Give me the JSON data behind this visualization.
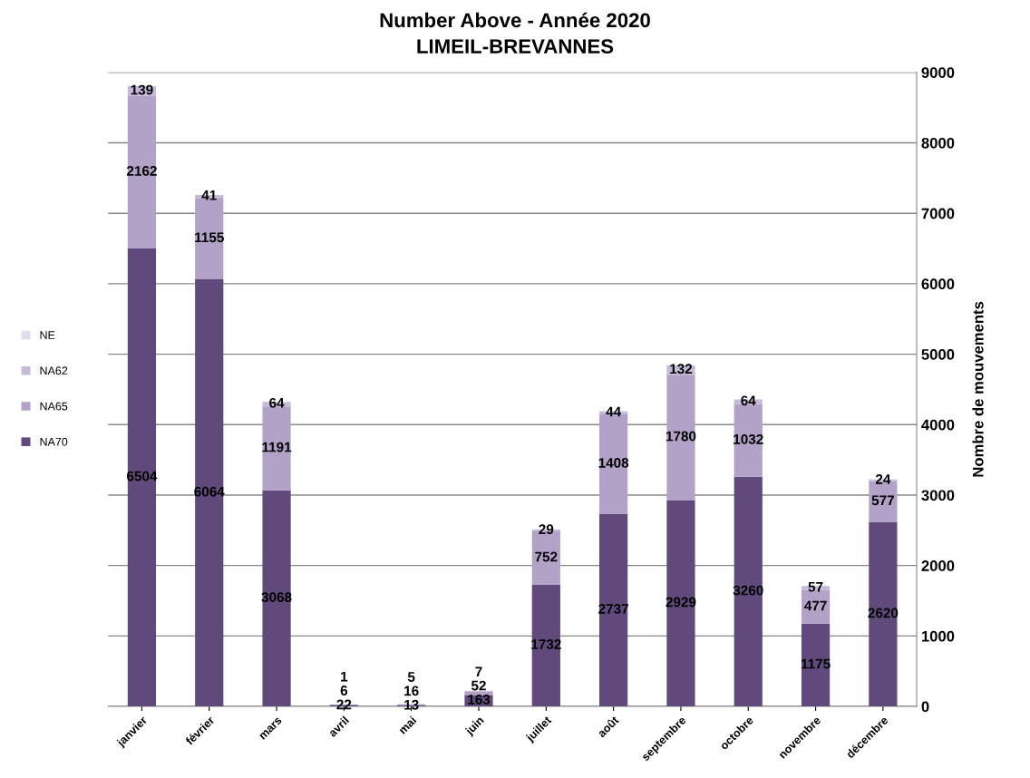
{
  "chart_data": {
    "type": "bar",
    "stacked": true,
    "title": "Number Above - Année 2020\nLIMEIL-BREVANNES",
    "ylabel": "Nombre de mouvements",
    "categories": [
      "janvier",
      "février",
      "mars",
      "avril",
      "mai",
      "juin",
      "juillet",
      "août",
      "septembre",
      "octobre",
      "novembre",
      "décembre"
    ],
    "series": [
      {
        "name": "NA70",
        "color": "#5f4a7b",
        "values": [
          6504,
          6064,
          3068,
          22,
          13,
          163,
          1732,
          2737,
          2929,
          3260,
          1175,
          2620
        ]
      },
      {
        "name": "NA65",
        "color": "#b3a2c7",
        "values": [
          2162,
          1155,
          1191,
          6,
          16,
          52,
          752,
          1408,
          1780,
          1032,
          477,
          577
        ]
      },
      {
        "name": "NA62",
        "color": "#c6b9d9",
        "values": [
          139,
          41,
          64,
          1,
          5,
          7,
          29,
          44,
          132,
          64,
          57,
          24
        ]
      },
      {
        "name": "NE",
        "color": "#e1dbeb",
        "values": [
          null,
          null,
          null,
          null,
          null,
          null,
          null,
          null,
          null,
          null,
          null,
          null
        ]
      }
    ],
    "ylim": [
      0,
      9000
    ],
    "yticks": [
      0,
      1000,
      2000,
      3000,
      4000,
      5000,
      6000,
      7000,
      8000,
      9000
    ],
    "grid": "y",
    "legend": "left",
    "data_labels": true
  }
}
